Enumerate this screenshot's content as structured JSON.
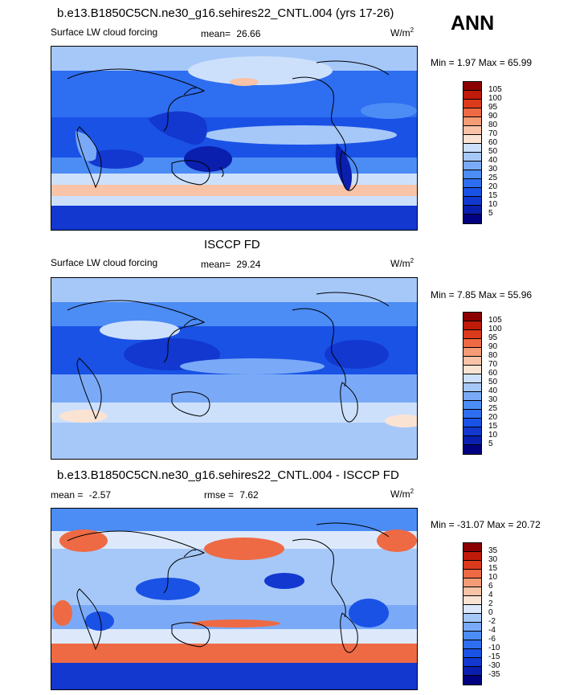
{
  "season": "ANN",
  "units_base": "W/m",
  "units_exp": "2",
  "panels": [
    {
      "title": "b.e13.B1850C5CN.ne30_g16.sehires22_CNTL.004 (yrs 17-26)",
      "left_label": "Surface LW cloud forcing",
      "mean_label": "mean=",
      "mean_value": "26.66",
      "minmax": "Min =   1.97 Max =  65.99",
      "levels": [
        "5",
        "10",
        "15",
        "20",
        "25",
        "30",
        "40",
        "50",
        "60",
        "70",
        "80",
        "90",
        "95",
        "100",
        "105"
      ]
    },
    {
      "title": "ISCCP FD",
      "left_label": "Surface LW cloud forcing",
      "mean_label": "mean=",
      "mean_value": "29.24",
      "minmax": "Min =   7.85 Max =  55.96",
      "levels": [
        "5",
        "10",
        "15",
        "20",
        "25",
        "30",
        "40",
        "50",
        "60",
        "70",
        "80",
        "90",
        "95",
        "100",
        "105"
      ]
    },
    {
      "title": "b.e13.B1850C5CN.ne30_g16.sehires22_CNTL.004 - ISCCP FD",
      "left_label": "mean =",
      "left_value": "-2.57",
      "mean_label": "rmse =",
      "mean_value": "7.62",
      "minmax": "Min = -31.07 Max =  20.72",
      "levels": [
        "-35",
        "-30",
        "-15",
        "-10",
        "-6",
        "-4",
        "-2",
        "0",
        "2",
        "4",
        "6",
        "10",
        "15",
        "30",
        "35"
      ]
    }
  ],
  "colors": {
    "abs_scale": [
      "#000080",
      "#0a1fae",
      "#1238d0",
      "#1a52e6",
      "#2e6ef0",
      "#4c8cf5",
      "#7aaaf7",
      "#a6c8f9",
      "#cde0fb",
      "#fbe3d3",
      "#f8c3a7",
      "#f59b76",
      "#ee6a44",
      "#dc3a1c",
      "#bf1a0a",
      "#8b0000"
    ],
    "diff_scale": [
      "#000080",
      "#0a1fae",
      "#1238d0",
      "#1a52e6",
      "#2e6ef0",
      "#4c8cf5",
      "#7aaaf7",
      "#a6c8f9",
      "#dde9fb",
      "#fbe3d3",
      "#f8c3a7",
      "#f59b76",
      "#ee6a44",
      "#dc3a1c",
      "#bf1a0a",
      "#8b0000"
    ]
  },
  "chart_data": [
    {
      "type": "heatmap",
      "title": "b.e13.B1850C5CN.ne30_g16.sehires22_CNTL.004 (yrs 17-26)",
      "variable": "Surface LW cloud forcing",
      "units": "W/m2",
      "mean": 26.66,
      "min": 1.97,
      "max": 65.99,
      "contour_levels": [
        5,
        10,
        15,
        20,
        25,
        30,
        40,
        50,
        60,
        70,
        80,
        90,
        95,
        100,
        105
      ],
      "colormap": "blue-white-red"
    },
    {
      "type": "heatmap",
      "title": "ISCCP FD",
      "variable": "Surface LW cloud forcing",
      "units": "W/m2",
      "mean": 29.24,
      "min": 7.85,
      "max": 55.96,
      "contour_levels": [
        5,
        10,
        15,
        20,
        25,
        30,
        40,
        50,
        60,
        70,
        80,
        90,
        95,
        100,
        105
      ],
      "colormap": "blue-white-red"
    },
    {
      "type": "heatmap",
      "title": "b.e13.B1850C5CN.ne30_g16.sehires22_CNTL.004 - ISCCP FD",
      "units": "W/m2",
      "mean": -2.57,
      "rmse": 7.62,
      "min": -31.07,
      "max": 20.72,
      "contour_levels": [
        -35,
        -30,
        -15,
        -10,
        -6,
        -4,
        -2,
        0,
        2,
        4,
        6,
        10,
        15,
        30,
        35
      ],
      "colormap": "blue-white-red"
    }
  ]
}
